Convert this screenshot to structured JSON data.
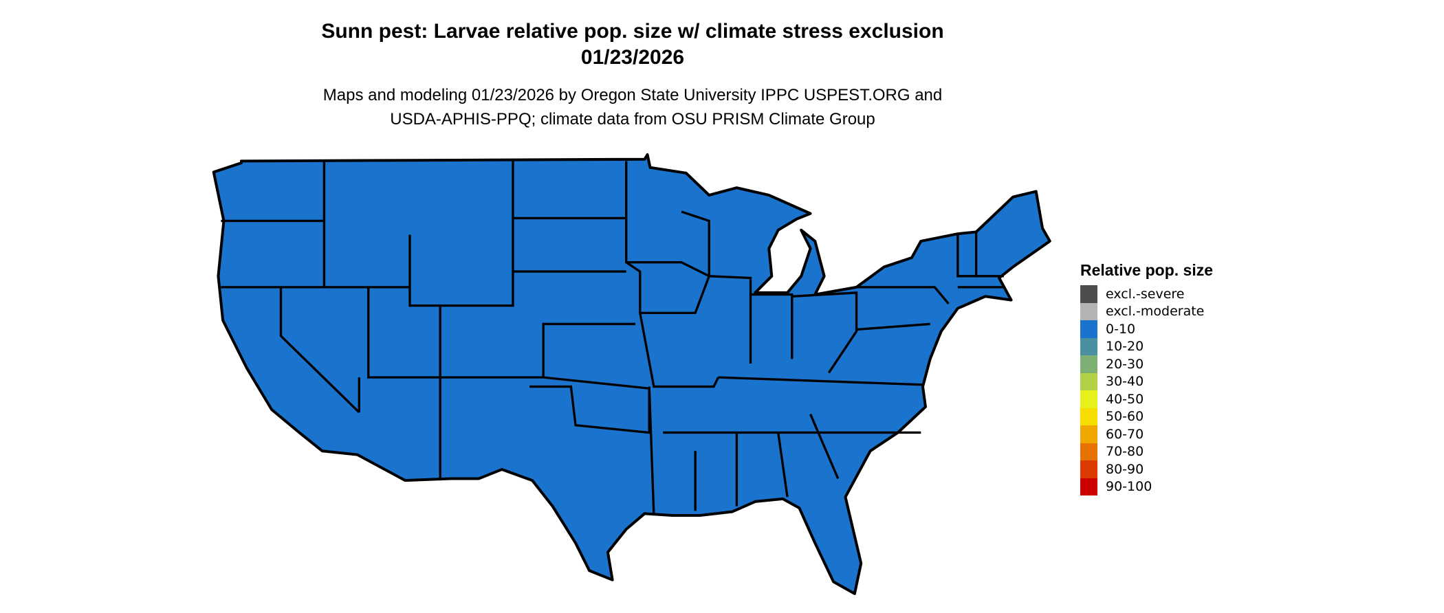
{
  "title": {
    "line1": "Sunn pest: Larvae relative pop. size w/ climate stress exclusion",
    "line2": "01/23/2026"
  },
  "subtitle": {
    "line1": "Maps and modeling 01/23/2026 by Oregon State University IPPC USPEST.ORG and",
    "line2": "USDA-APHIS-PPQ; climate data from OSU PRISM Climate Group"
  },
  "map": {
    "region": "Contiguous United States",
    "fill_color": "#1a73cc",
    "fill_class": "0-10",
    "border_color": "#000000"
  },
  "legend": {
    "title": "Relative pop. size",
    "items": [
      {
        "label": "excl.-severe",
        "color": "#4d4d4d"
      },
      {
        "label": "excl.-moderate",
        "color": "#b3b3b3"
      },
      {
        "label": "0-10",
        "color": "#1a73cc"
      },
      {
        "label": "10-20",
        "color": "#4a90a0"
      },
      {
        "label": "20-30",
        "color": "#7db072"
      },
      {
        "label": "30-40",
        "color": "#b3d147"
      },
      {
        "label": "40-50",
        "color": "#e6f01a"
      },
      {
        "label": "50-60",
        "color": "#f7de00"
      },
      {
        "label": "60-70",
        "color": "#f0a800"
      },
      {
        "label": "70-80",
        "color": "#e67300"
      },
      {
        "label": "80-90",
        "color": "#db3b00"
      },
      {
        "label": "90-100",
        "color": "#cc0000"
      }
    ]
  }
}
